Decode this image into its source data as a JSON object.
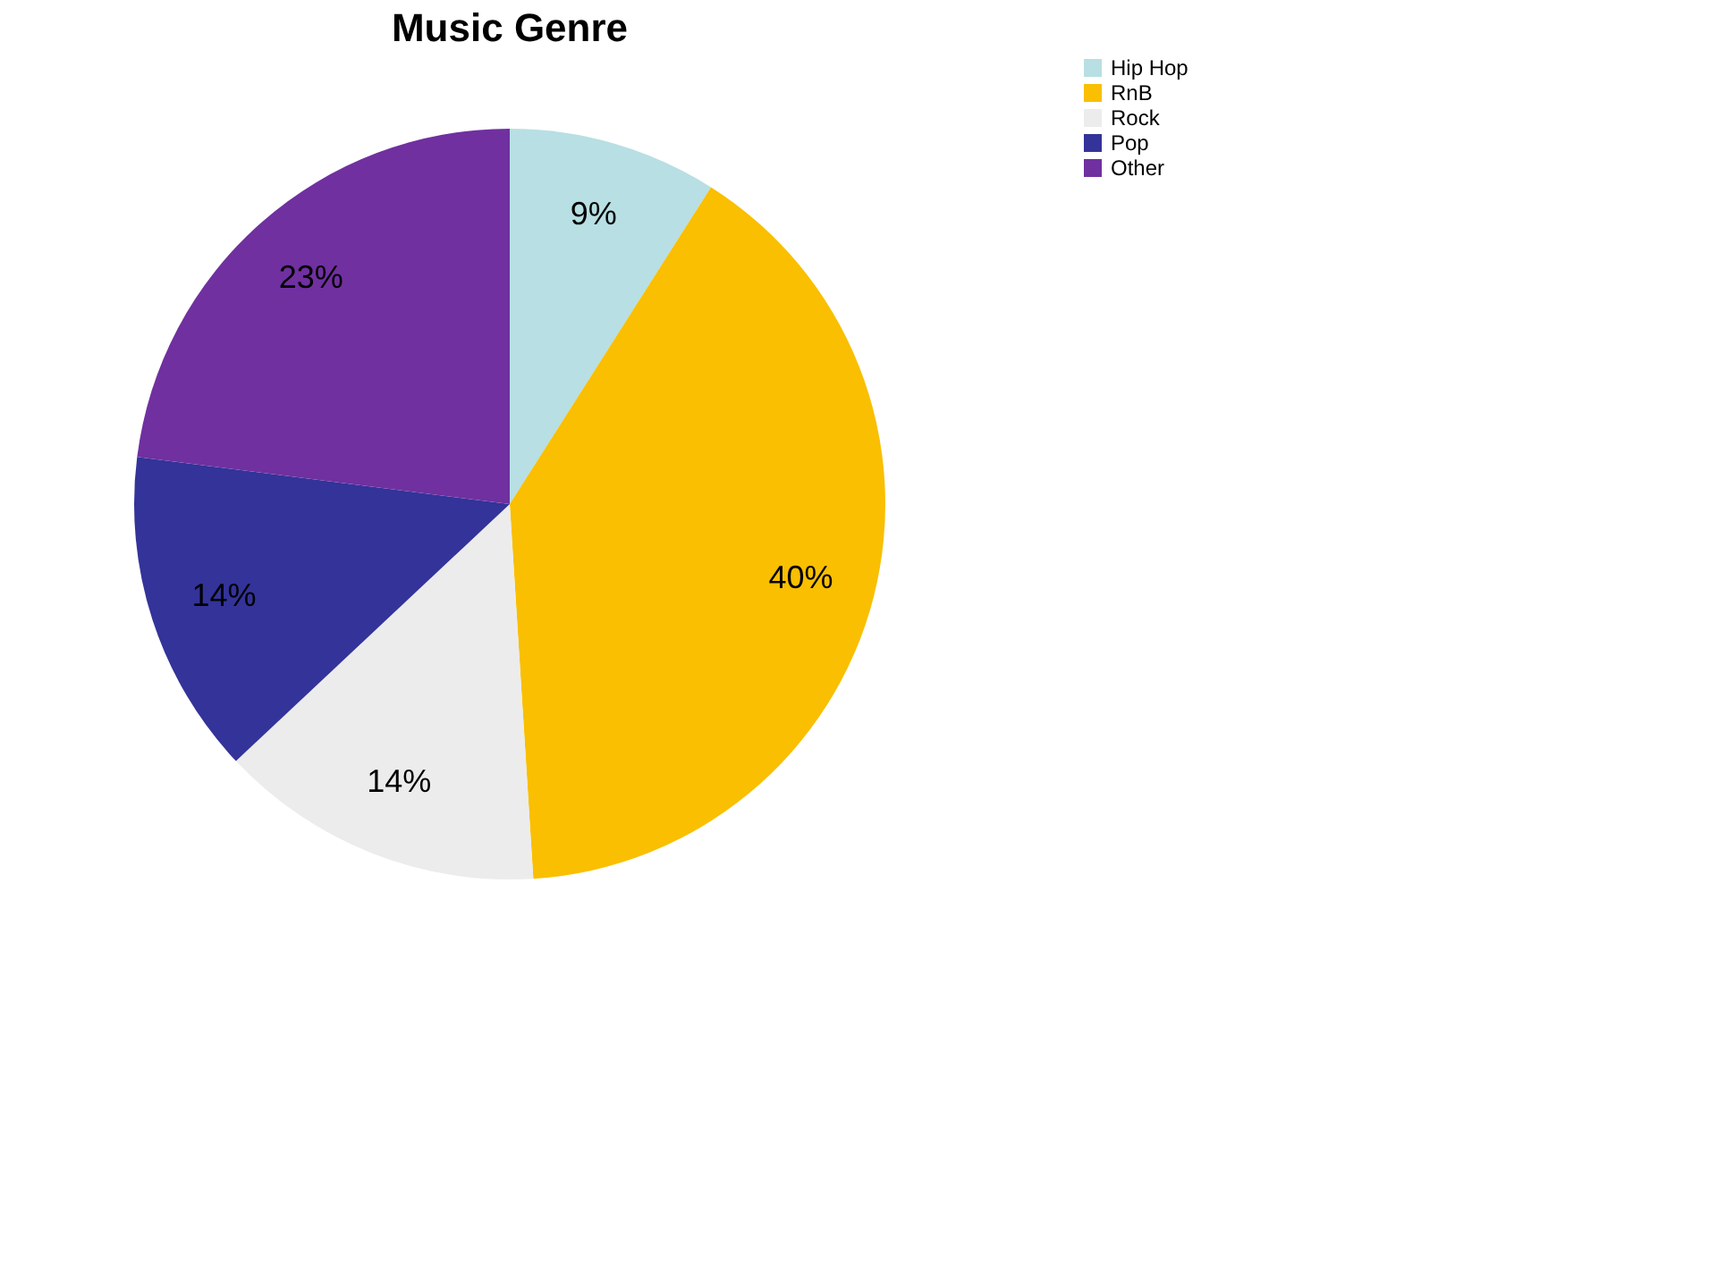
{
  "chart_data": {
    "type": "pie",
    "title": "Music Genre",
    "categories": [
      "Hip Hop",
      "RnB",
      "Rock",
      "Pop",
      "Other"
    ],
    "values": [
      9,
      40,
      14,
      14,
      23
    ],
    "colors": [
      "#b8dfe3",
      "#f9bf00",
      "#ececec",
      "#333399",
      "#7030a0"
    ],
    "value_labels": [
      "9%",
      "40%",
      "14%",
      "14%",
      "23%"
    ],
    "legend": "right"
  }
}
